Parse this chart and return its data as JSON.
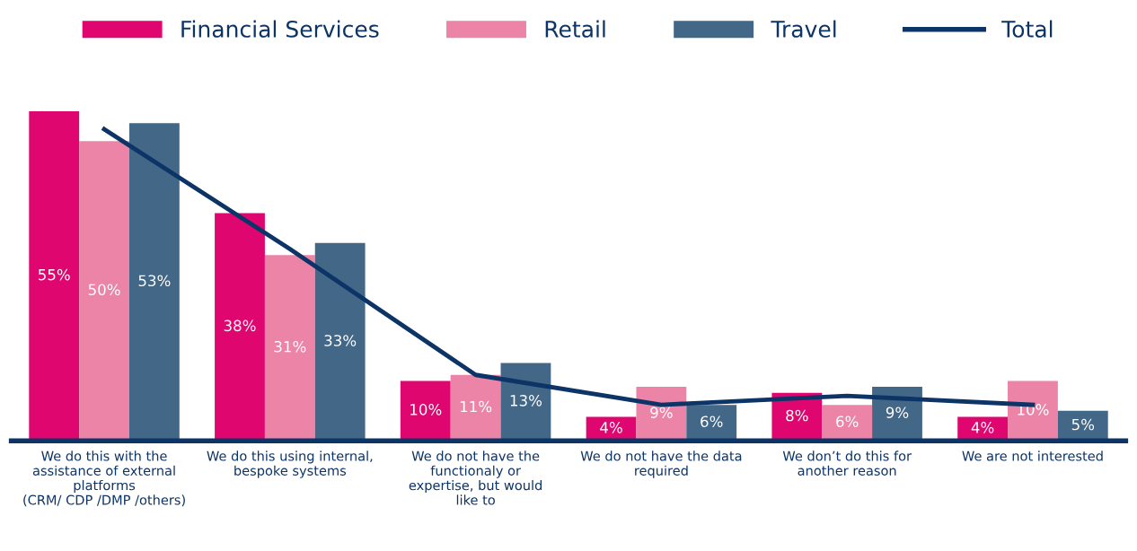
{
  "chart_data": {
    "type": "bar",
    "categories": [
      "We do this with the\nassistance of external\nplatforms\n(CRM/ CDP /DMP /others)",
      "We do this using internal,\nbespoke systems",
      "We do not have the\nfunctionaly or\nexpertise, but would\nlike to",
      "We do not have the data\nrequired",
      "We don’t do this for\nanother reason",
      "We are not interested"
    ],
    "series": [
      {
        "name": "Financial Services",
        "color": "#e0066f",
        "values": [
          55,
          38,
          10,
          4,
          8,
          4
        ],
        "value_labels": [
          "55%",
          "38%",
          "10%",
          "4%",
          "8%",
          "4%"
        ]
      },
      {
        "name": "Retail",
        "color": "#ec84a8",
        "values": [
          50,
          31,
          11,
          9,
          6,
          10
        ],
        "value_labels": [
          "50%",
          "31%",
          "11%",
          "9%",
          "6%",
          "10%"
        ]
      },
      {
        "name": "Travel",
        "color": "#426787",
        "values": [
          53,
          33,
          13,
          6,
          9,
          5
        ],
        "value_labels": [
          "53%",
          "33%",
          "13%",
          "6%",
          "9%",
          "5%"
        ]
      },
      {
        "name": "Total",
        "type": "line",
        "color": "#0d3466",
        "values": [
          52,
          32,
          11,
          6,
          7.5,
          6
        ]
      }
    ],
    "legend": "top",
    "grid": false,
    "marker": "none"
  }
}
